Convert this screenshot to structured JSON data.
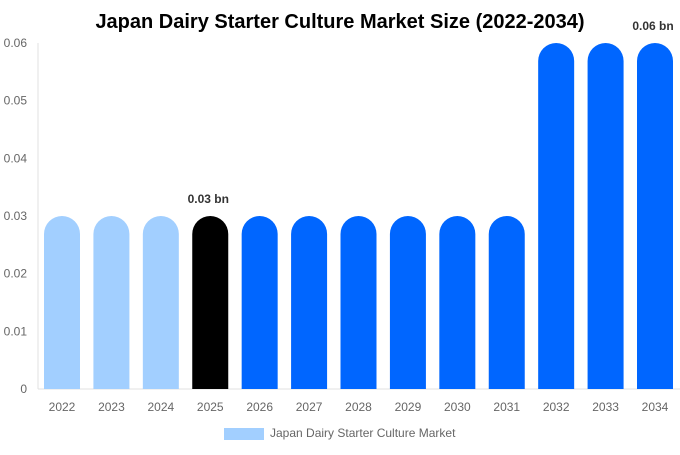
{
  "chart_data": {
    "type": "bar",
    "title": "Japan Dairy Starter Culture Market Size (2022-2034)",
    "xlabel": "",
    "ylabel": "",
    "categories": [
      "2022",
      "2023",
      "2024",
      "2025",
      "2026",
      "2027",
      "2028",
      "2029",
      "2030",
      "2031",
      "2032",
      "2033",
      "2034"
    ],
    "series": [
      {
        "name": "Japan Dairy Starter Culture Market",
        "values": [
          0.03,
          0.03,
          0.03,
          0.03,
          0.03,
          0.03,
          0.03,
          0.03,
          0.03,
          0.03,
          0.06,
          0.06,
          0.06
        ]
      }
    ],
    "ylim": [
      0,
      0.06
    ],
    "yticks": [
      "0",
      "0.01",
      "0.02",
      "0.03",
      "0.04",
      "0.05",
      "0.06"
    ],
    "data_labels": [
      {
        "category": "2025",
        "text": "0.03 bn"
      },
      {
        "category": "2034",
        "text": "0.06 bn"
      }
    ],
    "grid": false,
    "legend_position": "bottom",
    "colors": {
      "historical": "#a2cfff",
      "current": "#000000",
      "forecast": "#0066ff"
    }
  }
}
